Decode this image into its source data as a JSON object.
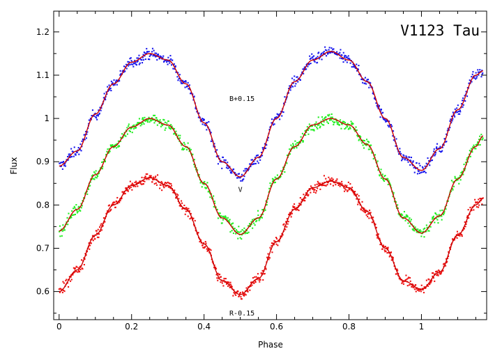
{
  "chart_data": {
    "type": "scatter",
    "title": "V1123 Tau",
    "xlabel": "Phase",
    "ylabel": "Flux",
    "xlim": [
      -0.015,
      1.18
    ],
    "ylim": [
      0.535,
      1.248
    ],
    "xticks": [
      0,
      0.2,
      0.4,
      0.6,
      0.8,
      1
    ],
    "xtick_labels": [
      "0",
      "0.2",
      "0.4",
      "0.6",
      "0.8",
      "1"
    ],
    "yticks": [
      0.6,
      0.7,
      0.8,
      0.9,
      1.0,
      1.1,
      1.2
    ],
    "ytick_labels": [
      "0.6",
      "0.7",
      "0.8",
      "0.9",
      "1",
      "1.1",
      "1.2"
    ],
    "grid": false,
    "legend": "none",
    "annotations": [
      {
        "text": "B+0.15",
        "x": 0.47,
        "y": 1.04
      },
      {
        "text": "V",
        "x": 0.5,
        "y": 0.83
      },
      {
        "text": "R-0.15",
        "x": 0.47,
        "y": 0.545
      }
    ],
    "series": [
      {
        "label": "B+0.15",
        "point_color": "#1a1aee",
        "fit_color": "#cc0000",
        "points": [
          [
            0.0,
            0.89
          ],
          [
            0.05,
            0.925
          ],
          [
            0.1,
            1.01
          ],
          [
            0.15,
            1.08
          ],
          [
            0.2,
            1.13
          ],
          [
            0.25,
            1.15
          ],
          [
            0.3,
            1.135
          ],
          [
            0.35,
            1.08
          ],
          [
            0.4,
            0.99
          ],
          [
            0.45,
            0.9
          ],
          [
            0.5,
            0.865
          ],
          [
            0.55,
            0.91
          ],
          [
            0.6,
            1.0
          ],
          [
            0.65,
            1.085
          ],
          [
            0.7,
            1.135
          ],
          [
            0.75,
            1.155
          ],
          [
            0.8,
            1.135
          ],
          [
            0.85,
            1.085
          ],
          [
            0.9,
            1.0
          ],
          [
            0.95,
            0.91
          ],
          [
            1.0,
            0.88
          ],
          [
            1.05,
            0.93
          ],
          [
            1.1,
            1.02
          ],
          [
            1.15,
            1.1
          ],
          [
            1.17,
            1.11
          ]
        ]
      },
      {
        "label": "V",
        "point_color": "#22ee22",
        "fit_color": "#cc0000",
        "points": [
          [
            0.0,
            0.74
          ],
          [
            0.05,
            0.79
          ],
          [
            0.1,
            0.87
          ],
          [
            0.15,
            0.935
          ],
          [
            0.2,
            0.98
          ],
          [
            0.25,
            1.0
          ],
          [
            0.3,
            0.985
          ],
          [
            0.35,
            0.935
          ],
          [
            0.4,
            0.85
          ],
          [
            0.45,
            0.77
          ],
          [
            0.5,
            0.732
          ],
          [
            0.55,
            0.77
          ],
          [
            0.6,
            0.86
          ],
          [
            0.65,
            0.935
          ],
          [
            0.7,
            0.985
          ],
          [
            0.75,
            1.0
          ],
          [
            0.8,
            0.985
          ],
          [
            0.85,
            0.94
          ],
          [
            0.9,
            0.86
          ],
          [
            0.95,
            0.77
          ],
          [
            1.0,
            0.735
          ],
          [
            1.05,
            0.775
          ],
          [
            1.1,
            0.86
          ],
          [
            1.15,
            0.935
          ],
          [
            1.17,
            0.96
          ]
        ]
      },
      {
        "label": "R-0.15",
        "point_color": "#ee1111",
        "fit_color": "#cc0000",
        "points": [
          [
            0.0,
            0.6
          ],
          [
            0.05,
            0.65
          ],
          [
            0.1,
            0.73
          ],
          [
            0.15,
            0.8
          ],
          [
            0.2,
            0.845
          ],
          [
            0.25,
            0.863
          ],
          [
            0.3,
            0.845
          ],
          [
            0.35,
            0.79
          ],
          [
            0.4,
            0.71
          ],
          [
            0.45,
            0.625
          ],
          [
            0.5,
            0.593
          ],
          [
            0.55,
            0.63
          ],
          [
            0.6,
            0.715
          ],
          [
            0.65,
            0.79
          ],
          [
            0.7,
            0.84
          ],
          [
            0.75,
            0.855
          ],
          [
            0.8,
            0.84
          ],
          [
            0.85,
            0.785
          ],
          [
            0.9,
            0.7
          ],
          [
            0.95,
            0.625
          ],
          [
            1.0,
            0.605
          ],
          [
            1.05,
            0.645
          ],
          [
            1.1,
            0.73
          ],
          [
            1.15,
            0.8
          ],
          [
            1.17,
            0.815
          ]
        ]
      }
    ]
  }
}
